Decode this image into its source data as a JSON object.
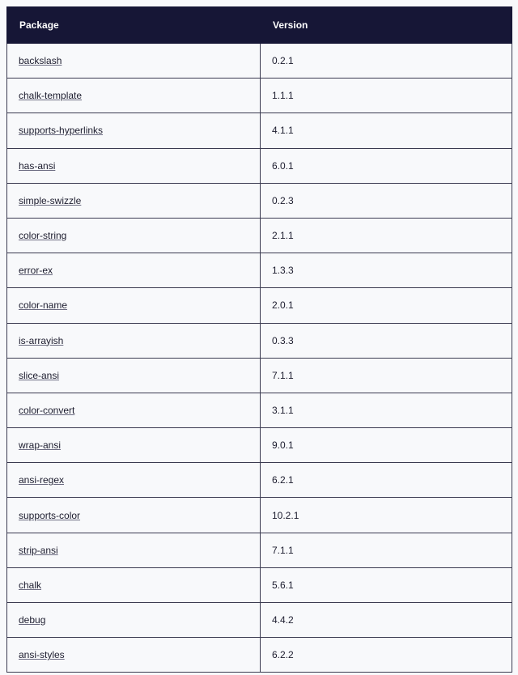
{
  "table": {
    "headers": [
      "Package",
      "Version"
    ],
    "rows": [
      {
        "package": "backslash",
        "version": "0.2.1"
      },
      {
        "package": "chalk-template",
        "version": "1.1.1"
      },
      {
        "package": "supports-hyperlinks",
        "version": "4.1.1"
      },
      {
        "package": "has-ansi",
        "version": "6.0.1"
      },
      {
        "package": "simple-swizzle",
        "version": "0.2.3"
      },
      {
        "package": "color-string",
        "version": "2.1.1"
      },
      {
        "package": "error-ex",
        "version": "1.3.3"
      },
      {
        "package": "color-name",
        "version": "2.0.1"
      },
      {
        "package": "is-arrayish",
        "version": "0.3.3"
      },
      {
        "package": "slice-ansi",
        "version": "7.1.1"
      },
      {
        "package": "color-convert",
        "version": "3.1.1"
      },
      {
        "package": "wrap-ansi",
        "version": "9.0.1"
      },
      {
        "package": "ansi-regex",
        "version": "6.2.1"
      },
      {
        "package": "supports-color",
        "version": "10.2.1"
      },
      {
        "package": "strip-ansi",
        "version": "7.1.1"
      },
      {
        "package": "chalk",
        "version": "5.6.1"
      },
      {
        "package": "debug",
        "version": "4.4.2"
      },
      {
        "package": "ansi-styles",
        "version": "6.2.2"
      }
    ]
  },
  "colors": {
    "header_bg": "#161636",
    "border": "#3a3a50",
    "background": "#f8f9fb"
  }
}
